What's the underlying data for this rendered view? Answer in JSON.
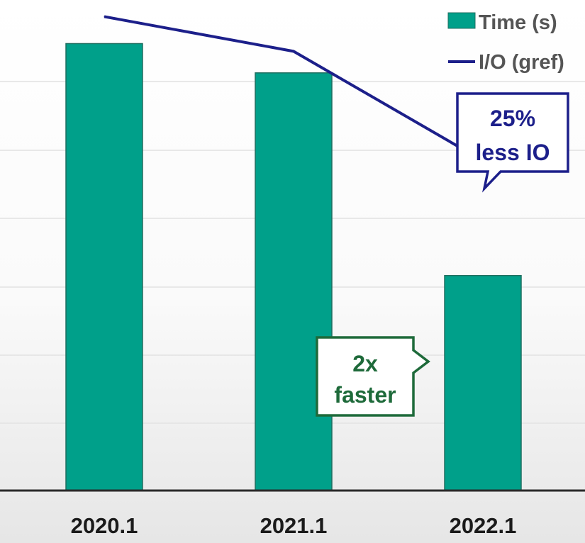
{
  "chart_data": {
    "type": "bar",
    "categories": [
      "2020.1",
      "2021.1",
      "2022.1"
    ],
    "series": [
      {
        "name": "Time (s)",
        "type": "bar",
        "values": [
          5.8,
          5.42,
          2.79
        ],
        "color": "#00a08a"
      },
      {
        "name": "I/O (gref)",
        "type": "line",
        "values": [
          6.15,
          5.7,
          4.28
        ],
        "color": "#1c1f8a"
      }
    ],
    "ylim": [
      0,
      6.2
    ],
    "grid": true,
    "legend": "top-right",
    "annotations": [
      {
        "lines": [
          "25%",
          "less IO"
        ],
        "color": "#1c1f8a"
      },
      {
        "lines": [
          "2x",
          "faster"
        ],
        "color": "#1e6a3a"
      }
    ]
  }
}
